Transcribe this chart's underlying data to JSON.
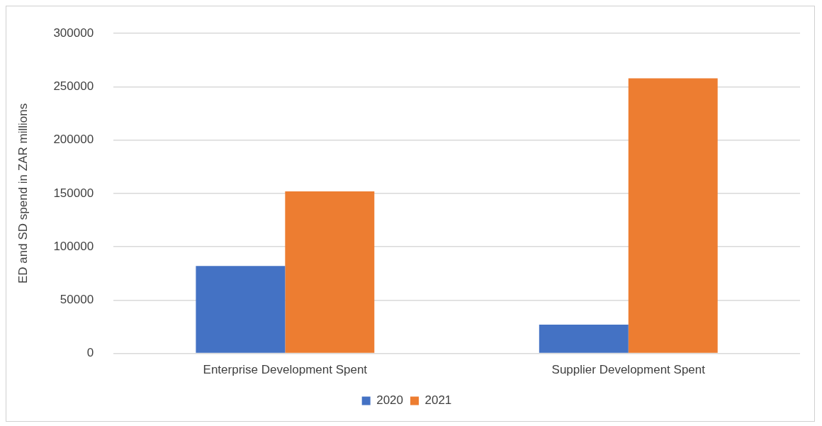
{
  "chart_data": {
    "type": "bar",
    "ylabel": "ED and SD spend in ZAR millions",
    "categories": [
      "Enterprise Development Spent",
      "Supplier Development Spent"
    ],
    "series": [
      {
        "name": "2020",
        "color": "#4472c4",
        "values": [
          82000,
          27000
        ]
      },
      {
        "name": "2021",
        "color": "#ed7d31",
        "values": [
          152000,
          258000
        ]
      }
    ],
    "ylim": [
      0,
      300000
    ],
    "yticks": [
      0,
      50000,
      100000,
      150000,
      200000,
      250000,
      300000
    ],
    "grid": "y",
    "legend": "bottom"
  }
}
